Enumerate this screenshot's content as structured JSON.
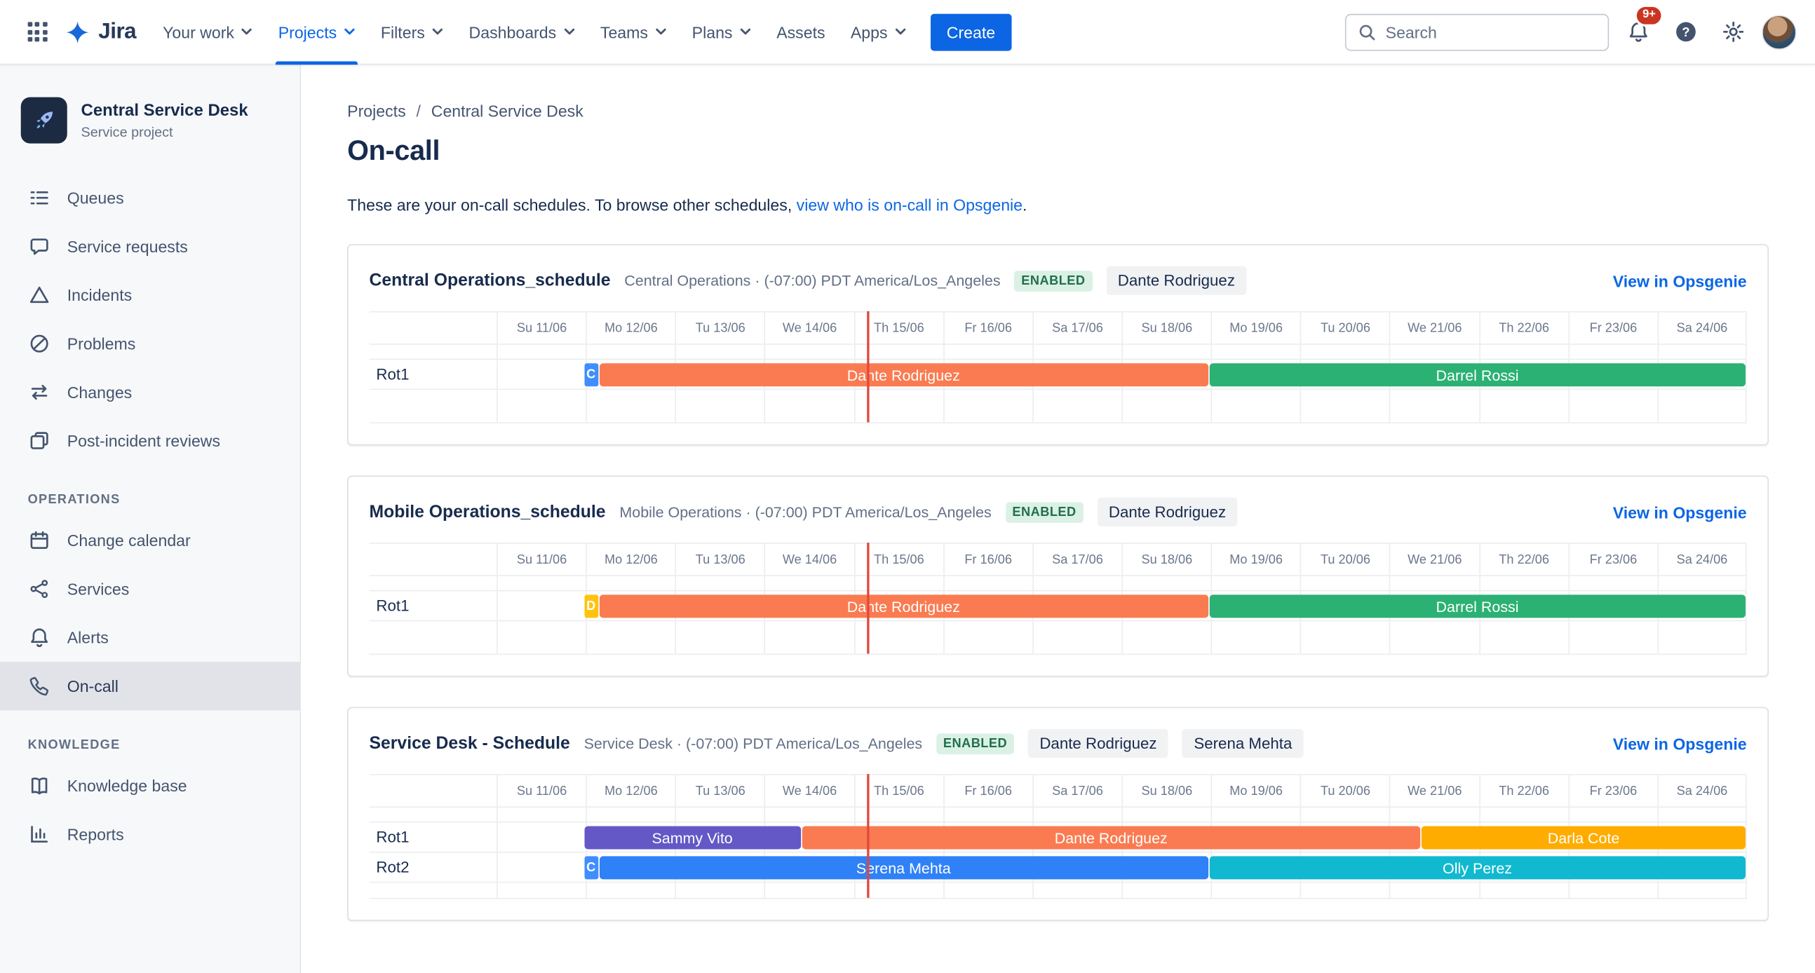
{
  "colors": {
    "nav_active": "#0C66E4",
    "create_button": "#0C66E4",
    "link": "#0C66E4",
    "enabled_badge_bg": "#DBF1E5",
    "enabled_badge_text": "#216E4E",
    "now_line": "#E2483D",
    "sidebar_selected_bg": "#E1E3E8"
  },
  "topnav": {
    "logo_text": "Jira",
    "items": [
      {
        "label": "Your work",
        "caret": true,
        "active": false
      },
      {
        "label": "Projects",
        "caret": true,
        "active": true
      },
      {
        "label": "Filters",
        "caret": true,
        "active": false
      },
      {
        "label": "Dashboards",
        "caret": true,
        "active": false
      },
      {
        "label": "Teams",
        "caret": true,
        "active": false
      },
      {
        "label": "Plans",
        "caret": true,
        "active": false
      },
      {
        "label": "Assets",
        "caret": false,
        "active": false
      },
      {
        "label": "Apps",
        "caret": true,
        "active": false
      }
    ],
    "create_label": "Create",
    "search_placeholder": "Search",
    "notification_badge": "9+"
  },
  "sidebar": {
    "project_name": "Central Service Desk",
    "project_type": "Service project",
    "items": [
      {
        "label": "Queues",
        "icon": "queues-icon"
      },
      {
        "label": "Service requests",
        "icon": "service-requests-icon"
      },
      {
        "label": "Incidents",
        "icon": "incidents-icon"
      },
      {
        "label": "Problems",
        "icon": "problems-icon"
      },
      {
        "label": "Changes",
        "icon": "changes-icon"
      },
      {
        "label": "Post-incident reviews",
        "icon": "post-incident-reviews-icon"
      }
    ],
    "sections": [
      {
        "heading": "OPERATIONS",
        "items": [
          {
            "label": "Change calendar",
            "icon": "change-calendar-icon"
          },
          {
            "label": "Services",
            "icon": "services-icon"
          },
          {
            "label": "Alerts",
            "icon": "alerts-icon"
          },
          {
            "label": "On-call",
            "icon": "on-call-icon",
            "selected": true
          }
        ]
      },
      {
        "heading": "KNOWLEDGE",
        "items": [
          {
            "label": "Knowledge base",
            "icon": "knowledge-base-icon"
          },
          {
            "label": "Reports",
            "icon": "reports-icon"
          }
        ]
      }
    ]
  },
  "main": {
    "breadcrumb": [
      "Projects",
      "Central Service Desk"
    ],
    "title": "On-call",
    "intro_text": "These are your on-call schedules. To browse other schedules, ",
    "intro_link": "view who is on-call in Opsgenie",
    "intro_suffix": ".",
    "dates": [
      "Su 11/06",
      "Mo 12/06",
      "Tu 13/06",
      "We 14/06",
      "Th 15/06",
      "Fr 16/06",
      "Sa 17/06",
      "Su 18/06",
      "Mo 19/06",
      "Tu 20/06",
      "We 21/06",
      "Th 22/06",
      "Fr 23/06",
      "Sa 24/06"
    ],
    "now_position_pct": 29.7,
    "schedules": [
      {
        "title": "Central Operations_schedule",
        "subtitle": "Central Operations · (-07:00) PDT America/Los_Angeles",
        "status": "ENABLED",
        "members": [
          "Dante Rodriguez"
        ],
        "link_label": "View in Opsgenie",
        "rotations": [
          {
            "label": "Rot1",
            "segments": [
              {
                "label": "C",
                "start_pct": 7.0,
                "end_pct": 8.2,
                "color": "#3F8EFF"
              },
              {
                "label": "Dante Rodriguez",
                "start_pct": 8.2,
                "end_pct": 57.0,
                "color": "#FA7B51"
              },
              {
                "label": "Darrel Rossi",
                "start_pct": 57.0,
                "end_pct": 100,
                "color": "#2BB173"
              }
            ]
          }
        ]
      },
      {
        "title": "Mobile Operations_schedule",
        "subtitle": "Mobile Operations · (-07:00) PDT America/Los_Angeles",
        "status": "ENABLED",
        "members": [
          "Dante Rodriguez"
        ],
        "link_label": "View in Opsgenie",
        "rotations": [
          {
            "label": "Rot1",
            "segments": [
              {
                "label": "D",
                "start_pct": 7.0,
                "end_pct": 8.2,
                "color": "#FFC30F"
              },
              {
                "label": "Dante Rodriguez",
                "start_pct": 8.2,
                "end_pct": 57.0,
                "color": "#FA7B51"
              },
              {
                "label": "Darrel Rossi",
                "start_pct": 57.0,
                "end_pct": 100,
                "color": "#2BB173"
              }
            ]
          }
        ]
      },
      {
        "title": "Service Desk - Schedule",
        "subtitle": "Service Desk · (-07:00) PDT America/Los_Angeles",
        "status": "ENABLED",
        "members": [
          "Dante Rodriguez",
          "Serena Mehta"
        ],
        "link_label": "View in Opsgenie",
        "rotations": [
          {
            "label": "Rot1",
            "segments": [
              {
                "label": "Sammy Vito",
                "start_pct": 7.0,
                "end_pct": 24.4,
                "color": "#6458C6"
              },
              {
                "label": "Dante Rodriguez",
                "start_pct": 24.4,
                "end_pct": 74.0,
                "color": "#FA7B51"
              },
              {
                "label": "Darla Cote",
                "start_pct": 74.0,
                "end_pct": 100,
                "color": "#FFAC00"
              }
            ]
          },
          {
            "label": "Rot2",
            "segments": [
              {
                "label": "C",
                "start_pct": 7.0,
                "end_pct": 8.2,
                "color": "#3F8EFF"
              },
              {
                "label": "Serena Mehta",
                "start_pct": 8.2,
                "end_pct": 57.0,
                "color": "#2F81F7"
              },
              {
                "label": "Olly Perez",
                "start_pct": 57.0,
                "end_pct": 100,
                "color": "#10B9CF"
              }
            ]
          }
        ]
      }
    ]
  }
}
